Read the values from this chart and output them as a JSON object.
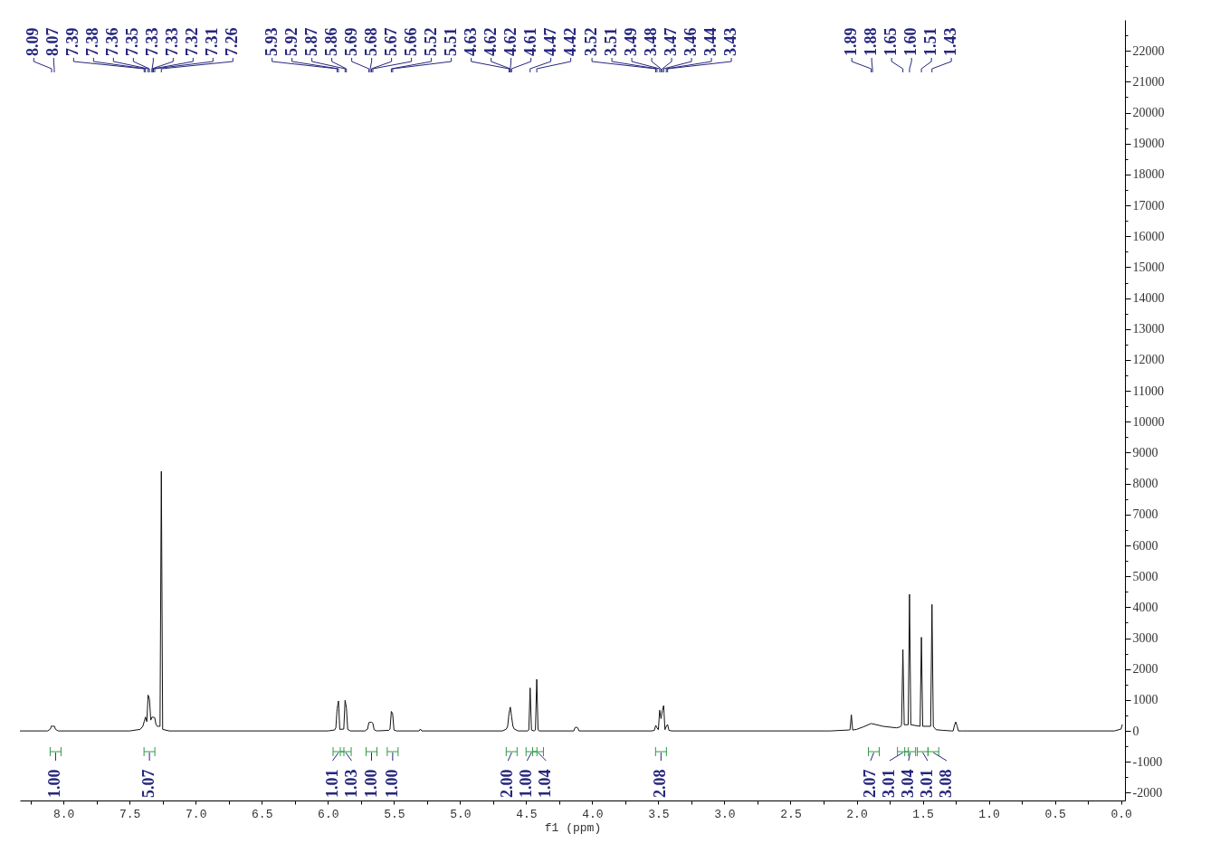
{
  "chart_data": {
    "type": "line",
    "xlabel": "f1 (ppm)",
    "color": "#111111",
    "x": [
      8.33,
      8.12,
      8.1,
      8.09,
      8.08,
      8.07,
      8.06,
      8.04,
      7.5,
      7.42,
      7.4,
      7.39,
      7.38,
      7.37,
      7.36,
      7.35,
      7.34,
      7.33,
      7.32,
      7.31,
      7.3,
      7.29,
      7.27,
      7.26,
      7.25,
      7.2,
      6.0,
      5.95,
      5.94,
      5.93,
      5.92,
      5.91,
      5.88,
      5.87,
      5.86,
      5.85,
      5.83,
      5.72,
      5.7,
      5.69,
      5.68,
      5.67,
      5.66,
      5.65,
      5.63,
      5.54,
      5.53,
      5.52,
      5.51,
      5.5,
      5.48,
      5.31,
      5.3,
      5.29,
      4.68,
      4.65,
      4.64,
      4.63,
      4.62,
      4.61,
      4.6,
      4.59,
      4.56,
      4.49,
      4.48,
      4.47,
      4.46,
      4.44,
      4.43,
      4.42,
      4.41,
      4.4,
      4.14,
      4.13,
      4.12,
      4.11,
      4.1,
      3.55,
      3.53,
      3.52,
      3.51,
      3.5,
      3.49,
      3.48,
      3.47,
      3.46,
      3.45,
      3.44,
      3.43,
      3.42,
      3.4,
      2.2,
      2.06,
      2.05,
      2.04,
      2.03,
      2.0,
      1.95,
      1.89,
      1.88,
      1.8,
      1.7,
      1.67,
      1.66,
      1.65,
      1.64,
      1.61,
      1.6,
      1.59,
      1.52,
      1.51,
      1.5,
      1.44,
      1.43,
      1.42,
      1.4,
      1.35,
      1.28,
      1.27,
      1.26,
      1.25,
      1.24,
      1.23,
      1.2,
      0.05,
      0.0,
      -0.01
    ],
    "values": [
      0,
      0,
      60,
      170,
      140,
      160,
      50,
      0,
      0,
      50,
      150,
      300,
      450,
      300,
      1160,
      1030,
      350,
      450,
      440,
      430,
      200,
      150,
      150,
      8400,
      50,
      0,
      0,
      30,
      100,
      720,
      970,
      50,
      60,
      990,
      750,
      50,
      0,
      0,
      60,
      270,
      280,
      280,
      250,
      40,
      0,
      20,
      60,
      630,
      550,
      30,
      0,
      0,
      60,
      0,
      0,
      60,
      150,
      560,
      770,
      450,
      150,
      60,
      0,
      0,
      30,
      1390,
      30,
      0,
      30,
      1670,
      30,
      0,
      0,
      110,
      120,
      100,
      0,
      0,
      20,
      180,
      100,
      40,
      670,
      400,
      660,
      820,
      40,
      150,
      210,
      20,
      0,
      0,
      30,
      40,
      520,
      30,
      50,
      130,
      240,
      230,
      150,
      100,
      130,
      200,
      2630,
      200,
      200,
      4420,
      200,
      150,
      3030,
      150,
      150,
      4090,
      150,
      40,
      20,
      0,
      0,
      180,
      290,
      160,
      0,
      0,
      0,
      60,
      210
    ],
    "xlim": [
      8.33,
      -0.03
    ],
    "xticks": [
      {
        "value": 8.25,
        "label": null
      },
      {
        "value": 8,
        "label": "8.0"
      },
      {
        "value": 7.75,
        "label": null
      },
      {
        "value": 7.5,
        "label": "7.5"
      },
      {
        "value": 7.25,
        "label": null
      },
      {
        "value": 7,
        "label": "7.0"
      },
      {
        "value": 6.75,
        "label": null
      },
      {
        "value": 6.5,
        "label": "6.5"
      },
      {
        "value": 6.25,
        "label": null
      },
      {
        "value": 6,
        "label": "6.0"
      },
      {
        "value": 5.75,
        "label": null
      },
      {
        "value": 5.5,
        "label": "5.5"
      },
      {
        "value": 5.25,
        "label": null
      },
      {
        "value": 5,
        "label": "5.0"
      },
      {
        "value": 4.75,
        "label": null
      },
      {
        "value": 4.5,
        "label": "4.5"
      },
      {
        "value": 4.25,
        "label": null
      },
      {
        "value": 4,
        "label": "4.0"
      },
      {
        "value": 3.75,
        "label": null
      },
      {
        "value": 3.5,
        "label": "3.5"
      },
      {
        "value": 3.25,
        "label": null
      },
      {
        "value": 3,
        "label": "3.0"
      },
      {
        "value": 2.75,
        "label": null
      },
      {
        "value": 2.5,
        "label": "2.5"
      },
      {
        "value": 2.25,
        "label": null
      },
      {
        "value": 2,
        "label": "2.0"
      },
      {
        "value": 1.75,
        "label": null
      },
      {
        "value": 1.5,
        "label": "1.5"
      },
      {
        "value": 1.25,
        "label": null
      },
      {
        "value": 1,
        "label": "1.0"
      },
      {
        "value": 0.75,
        "label": null
      },
      {
        "value": 0.5,
        "label": "0.5"
      },
      {
        "value": 0.25,
        "label": null
      },
      {
        "value": 0,
        "label": "0.0"
      }
    ],
    "ylim": [
      -2250,
      23000
    ],
    "yticks": [
      -2000,
      {
        "value": -1500,
        "label": null
      },
      -1000,
      {
        "value": -500,
        "label": null
      },
      0,
      {
        "value": 500,
        "label": null
      },
      1000,
      {
        "value": 1500,
        "label": null
      },
      2000,
      {
        "value": 2500,
        "label": null
      },
      3000,
      {
        "value": 3500,
        "label": null
      },
      4000,
      {
        "value": 4500,
        "label": null
      },
      5000,
      {
        "value": 5500,
        "label": null
      },
      6000,
      {
        "value": 6500,
        "label": null
      },
      7000,
      {
        "value": 7500,
        "label": null
      },
      8000,
      {
        "value": 8500,
        "label": null
      },
      9000,
      {
        "value": 9500,
        "label": null
      },
      10000,
      {
        "value": 10500,
        "label": null
      },
      11000,
      {
        "value": 11500,
        "label": null
      },
      12000,
      {
        "value": 12500,
        "label": null
      },
      13000,
      {
        "value": 13500,
        "label": null
      },
      14000,
      {
        "value": 14500,
        "label": null
      },
      15000,
      {
        "value": 15500,
        "label": null
      },
      16000,
      {
        "value": 16500,
        "label": null
      },
      17000,
      {
        "value": 17500,
        "label": null
      },
      18000,
      {
        "value": 18500,
        "label": null
      },
      19000,
      {
        "value": 19500,
        "label": null
      },
      20000,
      {
        "value": 20500,
        "label": null
      },
      21000,
      {
        "value": 21500,
        "label": null
      },
      22000,
      {
        "value": 22500,
        "label": null
      }
    ],
    "grid": false,
    "annotations": [
      {
        "text": "8.09",
        "x": 8.09
      },
      {
        "text": "8.07",
        "x": 8.07
      },
      {
        "text": "7.39",
        "x": 7.39
      },
      {
        "text": "7.38",
        "x": 7.38
      },
      {
        "text": "7.36",
        "x": 7.36
      },
      {
        "text": "7.35",
        "x": 7.35
      },
      {
        "text": "7.33",
        "x": 7.33
      },
      {
        "text": "7.33",
        "x": 7.33
      },
      {
        "text": "7.32",
        "x": 7.32
      },
      {
        "text": "7.31",
        "x": 7.31
      },
      {
        "text": "7.26",
        "x": 7.26
      },
      {
        "text": "5.93",
        "x": 5.93
      },
      {
        "text": "5.92",
        "x": 5.92
      },
      {
        "text": "5.87",
        "x": 5.87
      },
      {
        "text": "5.86",
        "x": 5.86
      },
      {
        "text": "5.69",
        "x": 5.69
      },
      {
        "text": "5.68",
        "x": 5.68
      },
      {
        "text": "5.67",
        "x": 5.67
      },
      {
        "text": "5.66",
        "x": 5.66
      },
      {
        "text": "5.52",
        "x": 5.52
      },
      {
        "text": "5.51",
        "x": 5.51
      },
      {
        "text": "4.63",
        "x": 4.63
      },
      {
        "text": "4.62",
        "x": 4.62
      },
      {
        "text": "4.62",
        "x": 4.62
      },
      {
        "text": "4.61",
        "x": 4.61
      },
      {
        "text": "4.47",
        "x": 4.47
      },
      {
        "text": "4.42",
        "x": 4.42
      },
      {
        "text": "3.52",
        "x": 3.52
      },
      {
        "text": "3.51",
        "x": 3.51
      },
      {
        "text": "3.49",
        "x": 3.49
      },
      {
        "text": "3.48",
        "x": 3.48
      },
      {
        "text": "3.47",
        "x": 3.47
      },
      {
        "text": "3.46",
        "x": 3.46
      },
      {
        "text": "3.44",
        "x": 3.44
      },
      {
        "text": "3.43",
        "x": 3.43
      },
      {
        "text": "1.89",
        "x": 1.89
      },
      {
        "text": "1.88",
        "x": 1.88
      },
      {
        "text": "1.65",
        "x": 1.65
      },
      {
        "text": "1.60",
        "x": 1.6
      },
      {
        "text": "1.51",
        "x": 1.51
      },
      {
        "text": "1.43",
        "x": 1.43
      },
      {
        "text": "1.00",
        "x": 8.06
      },
      {
        "text": "5.07",
        "x": 7.35
      },
      {
        "text": "1.01",
        "x": 5.92
      },
      {
        "text": "1.03",
        "x": 5.865
      },
      {
        "text": "1.00",
        "x": 5.67
      },
      {
        "text": "1.00",
        "x": 5.51
      },
      {
        "text": "2.00",
        "x": 4.61
      },
      {
        "text": "1.00",
        "x": 4.46
      },
      {
        "text": "1.04",
        "x": 4.41
      },
      {
        "text": "2.08",
        "x": 3.48
      },
      {
        "text": "2.07",
        "x": 1.87
      },
      {
        "text": "3.01",
        "x": 1.65
      },
      {
        "text": "3.04",
        "x": 1.595
      },
      {
        "text": "3.01",
        "x": 1.5
      },
      {
        "text": "3.08",
        "x": 1.42
      }
    ]
  }
}
